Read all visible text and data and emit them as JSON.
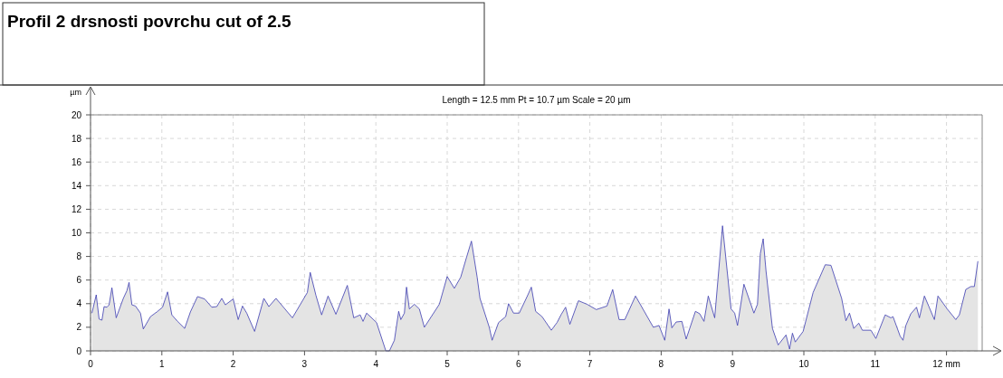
{
  "chart_data": {
    "type": "area",
    "title": "Profil 2 drsnosti povrchu cut of 2.5",
    "subtitle": "Length = 12.5 mm  Pt = 10.7 µm  Scale = 20 µm",
    "ylabel": "µm",
    "xlim": [
      0,
      12.5
    ],
    "ylim": [
      0,
      20
    ],
    "xticks": [
      0,
      1,
      2,
      3,
      4,
      5,
      6,
      7,
      8,
      9,
      10,
      11,
      {
        "value": 12,
        "label": "12 mm"
      }
    ],
    "yticks": [
      0,
      2,
      4,
      6,
      8,
      10,
      12,
      14,
      16,
      18,
      20
    ],
    "grid": true,
    "line_style": "solid",
    "marker": "none",
    "series": [
      {
        "color": "#3b3bb0",
        "x": [
          0.02,
          0.08,
          0.12,
          0.16,
          0.19,
          0.23,
          0.26,
          0.3,
          0.36,
          0.46,
          0.51,
          0.54,
          0.58,
          0.63,
          0.7,
          0.74,
          0.84,
          0.93,
          1.01,
          1.08,
          1.14,
          1.22,
          1.32,
          1.4,
          1.5,
          1.6,
          1.7,
          1.77,
          1.84,
          1.89,
          2.0,
          2.07,
          2.13,
          2.19,
          2.3,
          2.43,
          2.5,
          2.6,
          2.83,
          3.04,
          3.08,
          3.16,
          3.24,
          3.33,
          3.44,
          3.6,
          3.69,
          3.78,
          3.82,
          3.87,
          4.01,
          4.14,
          4.19,
          4.26,
          4.32,
          4.35,
          4.4,
          4.43,
          4.47,
          4.54,
          4.61,
          4.68,
          4.89,
          5.0,
          5.1,
          5.19,
          5.27,
          5.34,
          5.42,
          5.46,
          5.59,
          5.63,
          5.72,
          5.82,
          5.86,
          5.93,
          6.01,
          6.12,
          6.18,
          6.24,
          6.33,
          6.46,
          6.54,
          6.6,
          6.66,
          6.72,
          6.84,
          6.96,
          7.09,
          7.24,
          7.32,
          7.41,
          7.49,
          7.64,
          7.89,
          7.97,
          8.05,
          8.11,
          8.15,
          8.21,
          8.29,
          8.35,
          8.48,
          8.54,
          8.6,
          8.66,
          8.75,
          8.86,
          8.98,
          9.03,
          9.07,
          9.16,
          9.3,
          9.35,
          9.39,
          9.43,
          9.47,
          9.56,
          9.64,
          9.75,
          9.8,
          9.84,
          9.88,
          9.99,
          10.13,
          10.3,
          10.38,
          10.53,
          10.59,
          10.64,
          10.7,
          10.77,
          10.82,
          10.94,
          11.01,
          11.14,
          11.22,
          11.25,
          11.35,
          11.39,
          11.43,
          11.5,
          11.58,
          11.62,
          11.69,
          11.75,
          11.83,
          11.88,
          12.01,
          12.13,
          12.18,
          12.27,
          12.34,
          12.39,
          12.44
        ],
        "values": [
          3.2,
          4.75,
          2.7,
          2.6,
          3.75,
          3.7,
          3.9,
          5.35,
          2.8,
          4.45,
          5.1,
          5.8,
          3.9,
          3.8,
          3.2,
          1.85,
          2.9,
          3.3,
          3.7,
          5.0,
          3.05,
          2.5,
          1.9,
          3.3,
          4.6,
          4.4,
          3.7,
          3.75,
          4.45,
          3.9,
          4.4,
          2.65,
          3.8,
          3.2,
          1.65,
          4.45,
          3.75,
          4.45,
          2.8,
          4.95,
          6.65,
          4.7,
          3.05,
          4.65,
          3.1,
          5.55,
          2.8,
          3.05,
          2.5,
          3.2,
          2.4,
          0,
          0,
          0.9,
          3.35,
          2.65,
          3.2,
          5.4,
          3.55,
          3.95,
          3.55,
          2.0,
          3.95,
          6.3,
          5.3,
          6.25,
          7.9,
          9.3,
          6.25,
          4.45,
          2.0,
          0.9,
          2.4,
          2.9,
          4.0,
          3.2,
          3.2,
          4.6,
          5.4,
          3.35,
          2.9,
          1.75,
          2.4,
          3.1,
          3.7,
          2.25,
          4.25,
          3.95,
          3.5,
          3.8,
          5.2,
          2.65,
          2.65,
          4.65,
          2.0,
          2.15,
          0.9,
          3.55,
          1.95,
          2.45,
          2.5,
          1.0,
          3.35,
          3.15,
          2.5,
          4.65,
          2.8,
          10.6,
          3.55,
          3.2,
          2.15,
          5.65,
          3.2,
          3.95,
          8.25,
          9.5,
          6.75,
          1.9,
          0.5,
          1.35,
          0.15,
          1.5,
          0.75,
          1.65,
          4.95,
          7.3,
          7.25,
          4.45,
          2.55,
          3.2,
          1.9,
          2.35,
          1.75,
          1.75,
          1.05,
          3.05,
          2.8,
          2.9,
          1.25,
          0.9,
          2.15,
          3.15,
          3.7,
          2.8,
          4.65,
          3.8,
          2.65,
          4.65,
          3.55,
          2.65,
          3.05,
          5.2,
          5.45,
          5.45,
          7.6
        ]
      }
    ]
  }
}
